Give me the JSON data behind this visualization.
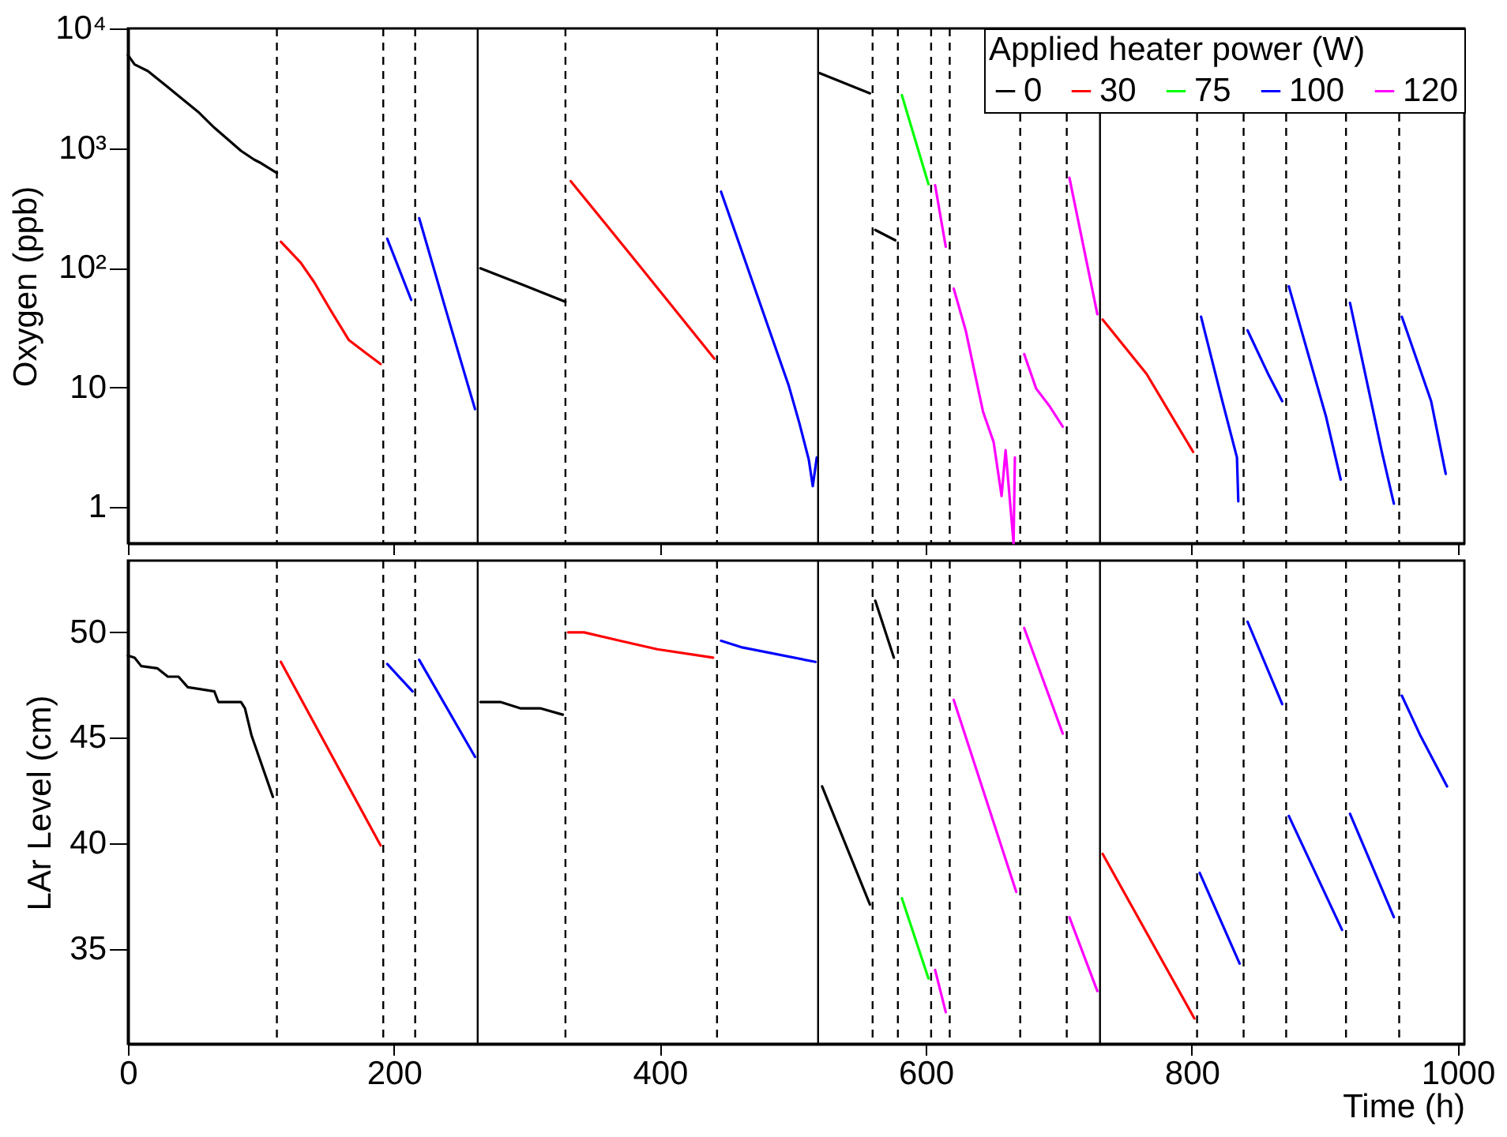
{
  "chart_data": [
    {
      "type": "line",
      "ylabel": "Oxygen (ppb)",
      "legend_title": "Applied heater power (W)",
      "legend": "top right",
      "log": "y",
      "grid": false,
      "tick_labels": "y",
      "line_style": "solid",
      "xlim": [
        0,
        1005
      ],
      "xticks": [
        0,
        200,
        400,
        600,
        800,
        1000
      ],
      "ylim": [
        0.5,
        10000
      ],
      "yticks": [
        1,
        10,
        {
          "value": 100,
          "label": "10²"
        },
        {
          "value": 1000,
          "label": "10³"
        },
        {
          "value": 10000,
          "label": "10⁴"
        }
      ],
      "series": [
        {
          "name": "0",
          "color": "#000000",
          "x": [
            0,
            5,
            15,
            29,
            53,
            65,
            85,
            95,
            100,
            112,
            190,
            265,
            297,
            329,
            420,
            520,
            558,
            560,
            562,
            577
          ],
          "values": [
            6000,
            5000,
            4400,
            3300,
            2000,
            1480,
            950,
            800,
            750,
            620,
            null,
            99,
            72,
            52,
            null,
            4240,
            2870,
            null,
            207,
            170
          ]
        },
        {
          "name": "30",
          "color": "#ff0000",
          "x": [
            115,
            130,
            140,
            152,
            166,
            180,
            190,
            260,
            333,
            386,
            441,
            600,
            733,
            766,
            801
          ],
          "values": [
            165,
            110,
            76,
            45,
            25,
            19,
            15.7,
            null,
            530,
            100,
            17.4,
            null,
            37,
            13,
            2.9
          ]
        },
        {
          "name": "75",
          "color": "#00ff00",
          "x": [
            582,
            602
          ],
          "values": [
            2770,
            500
          ]
        },
        {
          "name": "100",
          "color": "#0000ff",
          "x": [
            195,
            213,
            215,
            219,
            240,
            261,
            350,
            446,
            497,
            505,
            512,
            515,
            518,
            600,
            807,
            822,
            834,
            835,
            838,
            842,
            858,
            868,
            870,
            873,
            901,
            912,
            915,
            919,
            943,
            952,
            955,
            958,
            980,
            991
          ],
          "values": [
            175,
            54,
            null,
            260,
            41,
            6.6,
            null,
            433,
            10.3,
            5,
            2.5,
            1.5,
            2.6,
            null,
            39,
            8.5,
            2.6,
            1.12,
            null,
            30,
            12.6,
            7.7,
            null,
            70,
            5.7,
            1.7,
            null,
            51,
            2.9,
            1.07,
            null,
            39,
            7.7,
            1.9
          ]
        },
        {
          "name": "120",
          "color": "#ff00ff",
          "x": [
            607,
            615,
            618,
            621,
            630,
            643,
            651,
            657,
            660,
            666,
            667,
            670,
            674,
            683,
            693,
            703,
            705,
            708,
            729
          ],
          "values": [
            490,
            150,
            null,
            67,
            30,
            6.3,
            3.5,
            1.24,
            3,
            0.5,
            2.6,
            null,
            19,
            9.8,
            7,
            4.7,
            null,
            565,
            41
          ]
        }
      ],
      "ref_lines": [
        {
          "axis": "x",
          "value": 112,
          "line_style": "dashed"
        },
        {
          "axis": "x",
          "value": 192,
          "line_style": "dashed"
        },
        {
          "axis": "x",
          "value": 216,
          "line_style": "dashed"
        },
        {
          "axis": "x",
          "value": 263,
          "line_style": "solid"
        },
        {
          "axis": "x",
          "value": 329,
          "line_style": "dashed"
        },
        {
          "axis": "x",
          "value": 443,
          "line_style": "dashed"
        },
        {
          "axis": "x",
          "value": 519,
          "line_style": "solid"
        },
        {
          "axis": "x",
          "value": 560,
          "line_style": "dashed"
        },
        {
          "axis": "x",
          "value": 579,
          "line_style": "dashed"
        },
        {
          "axis": "x",
          "value": 604,
          "line_style": "dashed"
        },
        {
          "axis": "x",
          "value": 618,
          "line_style": "dashed"
        },
        {
          "axis": "x",
          "value": 671,
          "line_style": "dashed"
        },
        {
          "axis": "x",
          "value": 706,
          "line_style": "dashed"
        },
        {
          "axis": "x",
          "value": 731,
          "line_style": "solid"
        },
        {
          "axis": "x",
          "value": 804,
          "line_style": "dashed"
        },
        {
          "axis": "x",
          "value": 839,
          "line_style": "dashed"
        },
        {
          "axis": "x",
          "value": 871,
          "line_style": "dashed"
        },
        {
          "axis": "x",
          "value": 916,
          "line_style": "dashed"
        },
        {
          "axis": "x",
          "value": 956,
          "line_style": "dashed"
        }
      ]
    },
    {
      "type": "line",
      "xlabel": "Time (h)",
      "ylabel": "LAr Level (cm)",
      "grid": false,
      "line_style": "solid",
      "xlim": [
        0,
        1005
      ],
      "xticks": [
        0,
        200,
        400,
        600,
        800,
        1000
      ],
      "ylim": [
        30.5,
        53.4
      ],
      "yticks": [
        35,
        40,
        45,
        50
      ],
      "series": [
        {
          "color": "#000000",
          "x": [
            0,
            5,
            10,
            22,
            30,
            38,
            45,
            65,
            68,
            85,
            88,
            93,
            109,
            190,
            265,
            280,
            295,
            310,
            327,
            420,
            522,
            558,
            560,
            562,
            576
          ],
          "values": [
            48.9,
            48.8,
            48.4,
            48.3,
            47.9,
            47.9,
            47.4,
            47.2,
            46.7,
            46.7,
            46.4,
            45.1,
            42.2,
            null,
            46.7,
            46.7,
            46.4,
            46.4,
            46.1,
            null,
            42.7,
            37.1,
            null,
            51.5,
            48.8
          ]
        },
        {
          "color": "#ff0000",
          "x": [
            115,
            190,
            260,
            331,
            343,
            370,
            398,
            440,
            600,
            733,
            802
          ],
          "values": [
            48.6,
            39.9,
            null,
            50.0,
            50.0,
            49.6,
            49.2,
            48.8,
            null,
            39.5,
            31.7
          ]
        },
        {
          "color": "#00ff00",
          "x": [
            582,
            602
          ],
          "values": [
            37.4,
            33.6
          ]
        },
        {
          "color": "#0000ff",
          "x": [
            195,
            214,
            216,
            219,
            261,
            350,
            446,
            461,
            517,
            600,
            806,
            836,
            838,
            842,
            868,
            870,
            873,
            913,
            916,
            919,
            952,
            955,
            958,
            972,
            992
          ],
          "values": [
            48.5,
            47.2,
            null,
            48.7,
            44.1,
            null,
            49.6,
            49.3,
            48.6,
            null,
            38.6,
            34.3,
            null,
            50.5,
            46.6,
            null,
            41.3,
            35.9,
            null,
            41.4,
            36.5,
            null,
            47.0,
            45.1,
            42.7
          ]
        },
        {
          "color": "#ff00ff",
          "x": [
            607,
            615,
            618,
            621,
            668,
            670,
            674,
            703,
            705,
            708,
            729
          ],
          "values": [
            34.0,
            32.0,
            null,
            46.8,
            37.7,
            null,
            50.2,
            45.2,
            null,
            36.5,
            33.0
          ]
        }
      ],
      "ref_lines": [
        {
          "axis": "x",
          "value": 112,
          "line_style": "dashed"
        },
        {
          "axis": "x",
          "value": 192,
          "line_style": "dashed"
        },
        {
          "axis": "x",
          "value": 216,
          "line_style": "dashed"
        },
        {
          "axis": "x",
          "value": 263,
          "line_style": "solid"
        },
        {
          "axis": "x",
          "value": 329,
          "line_style": "dashed"
        },
        {
          "axis": "x",
          "value": 443,
          "line_style": "dashed"
        },
        {
          "axis": "x",
          "value": 519,
          "line_style": "solid"
        },
        {
          "axis": "x",
          "value": 560,
          "line_style": "dashed"
        },
        {
          "axis": "x",
          "value": 579,
          "line_style": "dashed"
        },
        {
          "axis": "x",
          "value": 604,
          "line_style": "dashed"
        },
        {
          "axis": "x",
          "value": 618,
          "line_style": "dashed"
        },
        {
          "axis": "x",
          "value": 671,
          "line_style": "dashed"
        },
        {
          "axis": "x",
          "value": 706,
          "line_style": "dashed"
        },
        {
          "axis": "x",
          "value": 731,
          "line_style": "solid"
        },
        {
          "axis": "x",
          "value": 804,
          "line_style": "dashed"
        },
        {
          "axis": "x",
          "value": 839,
          "line_style": "dashed"
        },
        {
          "axis": "x",
          "value": 871,
          "line_style": "dashed"
        },
        {
          "axis": "x",
          "value": 916,
          "line_style": "dashed"
        },
        {
          "axis": "x",
          "value": 956,
          "line_style": "dashed"
        }
      ]
    }
  ]
}
